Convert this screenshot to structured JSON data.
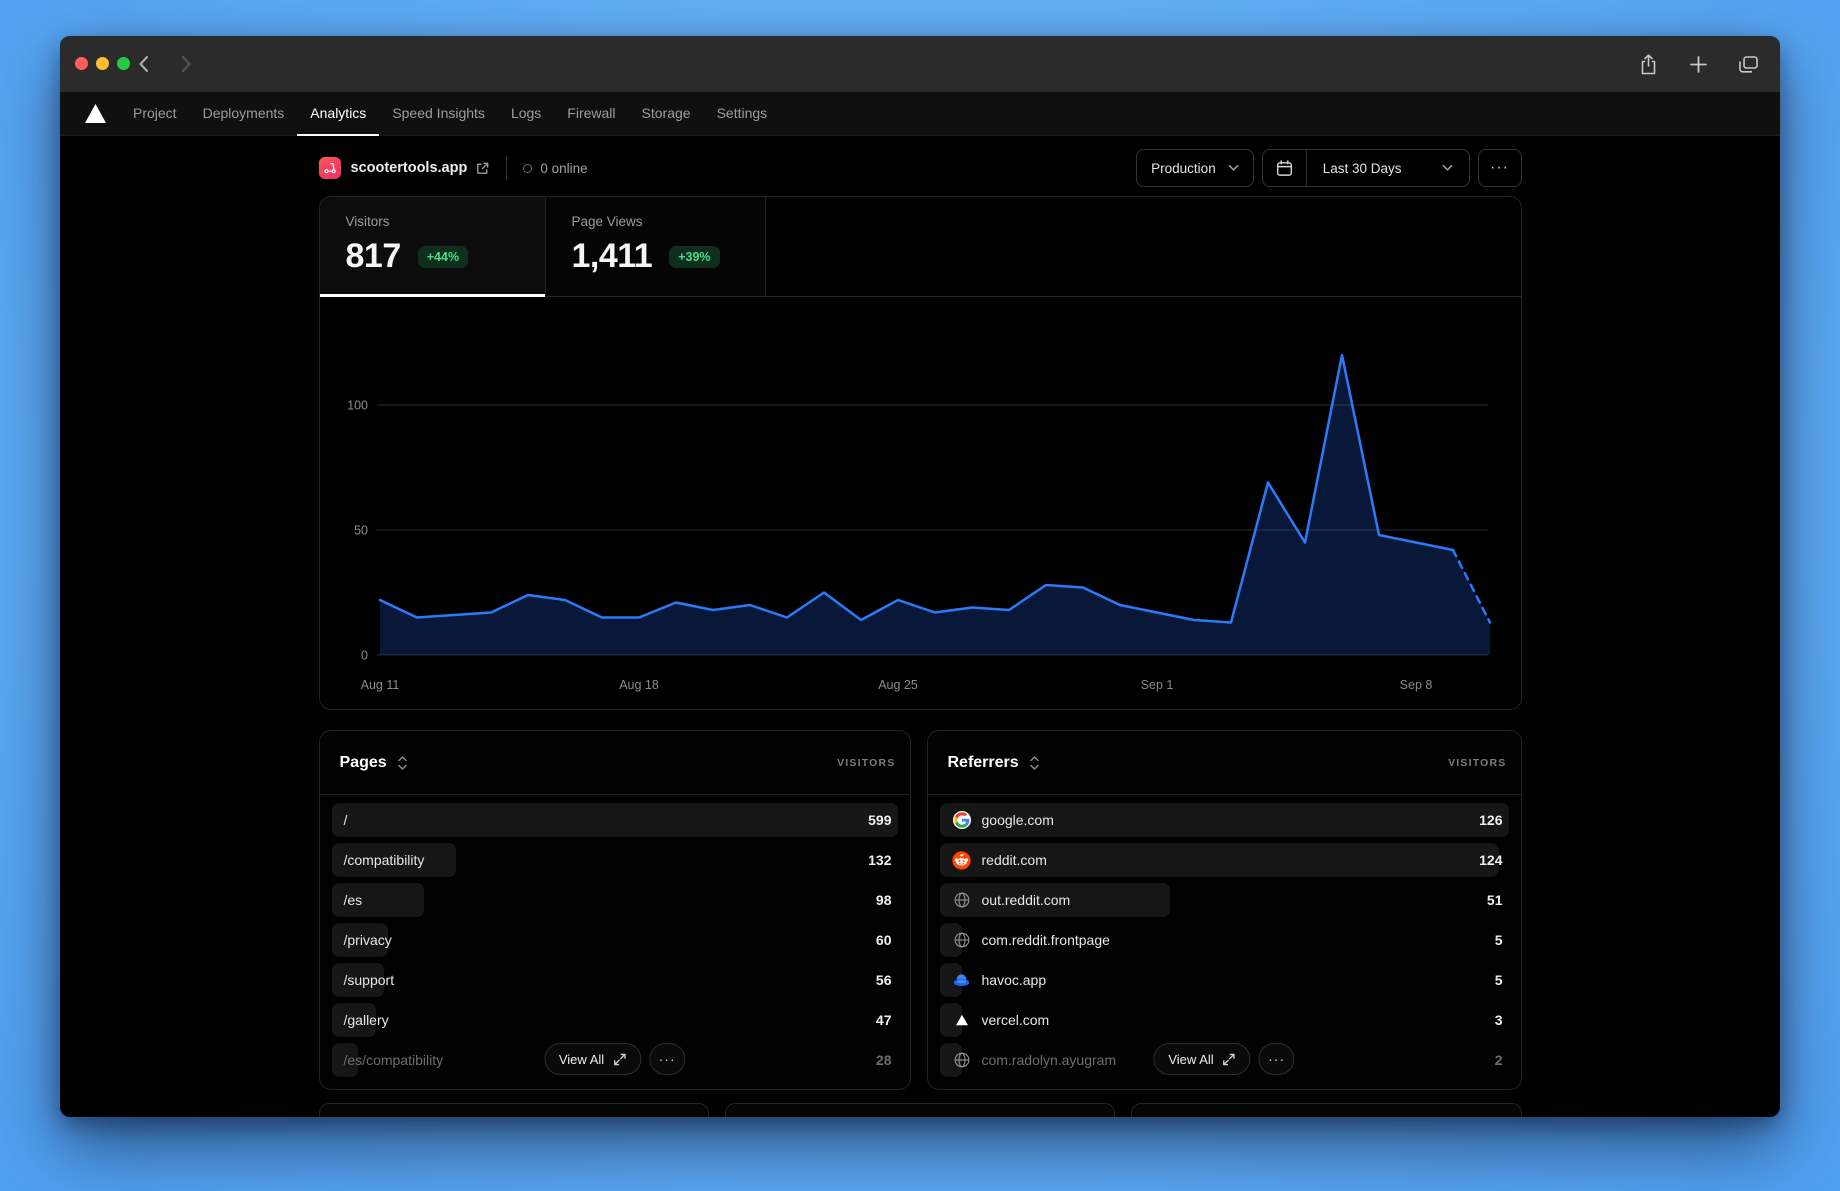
{
  "titlebar": {
    "share_icon": "share",
    "new_tab_icon": "plus",
    "tab_overview_icon": "tabs"
  },
  "nav": {
    "tabs": [
      "Project",
      "Deployments",
      "Analytics",
      "Speed Insights",
      "Logs",
      "Firewall",
      "Storage",
      "Settings"
    ],
    "active_tab": "Analytics"
  },
  "header": {
    "project_name": "scootertools.app",
    "online_status": "0 online",
    "environment": "Production",
    "date_range": "Last 30 Days",
    "more_label": "···"
  },
  "stats": {
    "tabs": [
      {
        "label": "Visitors",
        "value": "817",
        "delta": "+44%",
        "selected": true
      },
      {
        "label": "Page Views",
        "value": "1,411",
        "delta": "+39%",
        "selected": false
      }
    ]
  },
  "chart_data": {
    "type": "area",
    "title": "Visitors over last 30 days",
    "x": [
      "Aug 11",
      "Aug 12",
      "Aug 13",
      "Aug 14",
      "Aug 15",
      "Aug 16",
      "Aug 17",
      "Aug 18",
      "Aug 19",
      "Aug 20",
      "Aug 21",
      "Aug 22",
      "Aug 23",
      "Aug 24",
      "Aug 25",
      "Aug 26",
      "Aug 27",
      "Aug 28",
      "Aug 29",
      "Aug 30",
      "Aug 31",
      "Sep 1",
      "Sep 2",
      "Sep 3",
      "Sep 4",
      "Sep 5",
      "Sep 6",
      "Sep 7",
      "Sep 8",
      "Sep 9",
      "Sep 10"
    ],
    "series": [
      {
        "name": "Visitors",
        "values": [
          22,
          15,
          16,
          17,
          24,
          22,
          15,
          15,
          21,
          18,
          20,
          15,
          25,
          14,
          22,
          17,
          19,
          18,
          28,
          27,
          20,
          17,
          14,
          13,
          69,
          45,
          120,
          48,
          45,
          42,
          13
        ]
      }
    ],
    "dashed_from_index": 29,
    "xlabel": "",
    "ylabel": "",
    "ylim": [
      0,
      125
    ],
    "yticks": [
      0,
      50,
      100
    ],
    "xticks": [
      "Aug 11",
      "Aug 18",
      "Aug 25",
      "Sep 1",
      "Sep 8"
    ],
    "grid": "horizontal",
    "legend": "none",
    "line_color": "#2b7bf8",
    "fill_color": "rgba(37,99,235,0.24)",
    "grid_color": "#2d2d2d"
  },
  "pages": {
    "title": "Pages",
    "column": "VISITORS",
    "view_all": "View All",
    "more_label": "···",
    "rows": [
      {
        "label": "/",
        "value": 599
      },
      {
        "label": "/compatibility",
        "value": 132
      },
      {
        "label": "/es",
        "value": 98
      },
      {
        "label": "/privacy",
        "value": 60
      },
      {
        "label": "/support",
        "value": 56
      },
      {
        "label": "/gallery",
        "value": 47
      },
      {
        "label": "/es/compatibility",
        "value": 28,
        "faded": true
      }
    ]
  },
  "referrers": {
    "title": "Referrers",
    "column": "VISITORS",
    "view_all": "View All",
    "more_label": "···",
    "rows": [
      {
        "label": "google.com",
        "value": 126,
        "icon": "google"
      },
      {
        "label": "reddit.com",
        "value": 124,
        "icon": "reddit"
      },
      {
        "label": "out.reddit.com",
        "value": 51,
        "icon": "globe"
      },
      {
        "label": "com.reddit.frontpage",
        "value": 5,
        "icon": "globe"
      },
      {
        "label": "havoc.app",
        "value": 5,
        "icon": "havoc"
      },
      {
        "label": "vercel.com",
        "value": 3,
        "icon": "vercel"
      },
      {
        "label": "com.radolyn.ayugram",
        "value": 2,
        "icon": "globe",
        "faded": true
      }
    ]
  },
  "colors": {
    "accent_blue": "#2b7bf8",
    "badge_green_text": "#45de87",
    "badge_green_bg": "#0f2e1e",
    "panel_border": "#232323",
    "desktop_blue": "#63aff6"
  }
}
